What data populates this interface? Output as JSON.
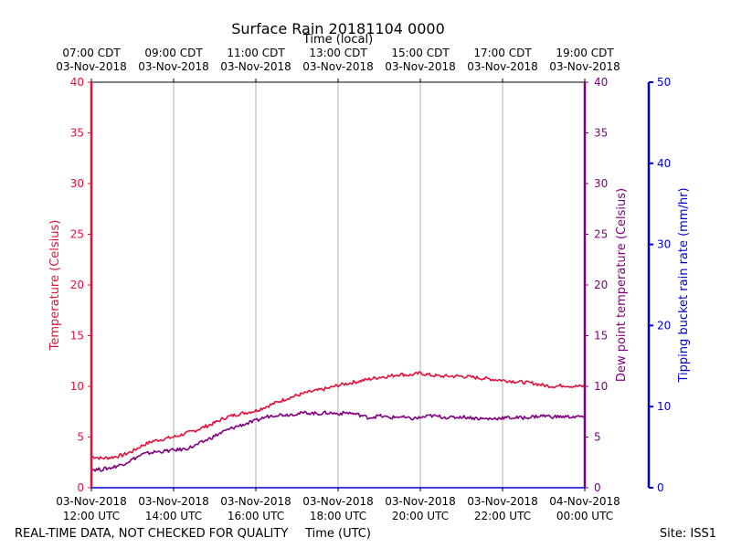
{
  "chart_data": {
    "type": "line",
    "title": "Surface Rain 20181104 0000",
    "top_axis_label": "Time (local)",
    "xlabel": "Time (UTC)",
    "ylabel_left": "Temperature (Celsius)",
    "ylabel_right": "Dew point temperature (Celsius)",
    "ylabel_far_right": "Tipping bucket rain rate (mm/hr)",
    "x_range_hours_utc": [
      12,
      24
    ],
    "ylim_temperature": [
      0,
      40
    ],
    "ylim_dewpoint": [
      0,
      40
    ],
    "ylim_rain_rate": [
      0,
      50
    ],
    "bottom_ticks": [
      {
        "x": 12,
        "line1": "03-Nov-2018",
        "line2": "12:00 UTC"
      },
      {
        "x": 14,
        "line1": "03-Nov-2018",
        "line2": "14:00 UTC"
      },
      {
        "x": 16,
        "line1": "03-Nov-2018",
        "line2": "16:00 UTC"
      },
      {
        "x": 18,
        "line1": "03-Nov-2018",
        "line2": "18:00 UTC"
      },
      {
        "x": 20,
        "line1": "03-Nov-2018",
        "line2": "20:00 UTC"
      },
      {
        "x": 22,
        "line1": "03-Nov-2018",
        "line2": "22:00 UTC"
      },
      {
        "x": 24,
        "line1": "04-Nov-2018",
        "line2": "00:00 UTC"
      }
    ],
    "top_ticks": [
      {
        "x": 12,
        "line1": "07:00 CDT",
        "line2": "03-Nov-2018"
      },
      {
        "x": 14,
        "line1": "09:00 CDT",
        "line2": "03-Nov-2018"
      },
      {
        "x": 16,
        "line1": "11:00 CDT",
        "line2": "03-Nov-2018"
      },
      {
        "x": 18,
        "line1": "13:00 CDT",
        "line2": "03-Nov-2018"
      },
      {
        "x": 20,
        "line1": "15:00 CDT",
        "line2": "03-Nov-2018"
      },
      {
        "x": 22,
        "line1": "17:00 CDT",
        "line2": "03-Nov-2018"
      },
      {
        "x": 24,
        "line1": "19:00 CDT",
        "line2": "03-Nov-2018"
      }
    ],
    "left_ticks": [
      "0",
      "5",
      "10",
      "15",
      "20",
      "25",
      "30",
      "35",
      "40"
    ],
    "right_ticks": [
      "0",
      "5",
      "10",
      "15",
      "20",
      "25",
      "30",
      "35",
      "40"
    ],
    "far_right_ticks": [
      "0",
      "10",
      "20",
      "30",
      "40",
      "50"
    ],
    "vertical_grid_x": [
      14,
      16,
      18,
      20,
      22
    ],
    "series": [
      {
        "name": "Temperature",
        "color": "#dc143c",
        "axis": "left",
        "x": [
          12.0,
          12.25,
          12.5,
          12.75,
          13.0,
          13.25,
          13.5,
          13.75,
          14.0,
          14.25,
          14.5,
          14.75,
          15.0,
          15.25,
          15.5,
          15.75,
          16.0,
          16.25,
          16.5,
          16.75,
          17.0,
          17.25,
          17.5,
          17.75,
          18.0,
          18.25,
          18.5,
          18.75,
          19.0,
          19.25,
          19.5,
          19.75,
          20.0,
          20.25,
          20.5,
          20.75,
          21.0,
          21.25,
          21.5,
          21.75,
          22.0,
          22.25,
          22.5,
          22.75,
          23.0,
          23.25,
          23.5,
          23.75,
          24.0
        ],
        "values": [
          3.1,
          2.9,
          3.0,
          3.2,
          3.6,
          4.2,
          4.6,
          4.8,
          5.0,
          5.3,
          5.6,
          6.0,
          6.4,
          6.9,
          7.2,
          7.4,
          7.6,
          8.0,
          8.4,
          8.8,
          9.1,
          9.4,
          9.6,
          9.8,
          10.1,
          10.3,
          10.5,
          10.7,
          10.9,
          11.0,
          11.2,
          11.1,
          11.3,
          11.1,
          11.0,
          11.0,
          11.0,
          10.9,
          10.8,
          10.7,
          10.6,
          10.5,
          10.4,
          10.3,
          10.1,
          10.0,
          10.1,
          10.0,
          10.0
        ]
      },
      {
        "name": "Dew point",
        "color": "#800080",
        "axis": "right",
        "x": [
          12.0,
          12.25,
          12.5,
          12.75,
          13.0,
          13.25,
          13.5,
          13.75,
          14.0,
          14.25,
          14.5,
          14.75,
          15.0,
          15.25,
          15.5,
          15.75,
          16.0,
          16.25,
          16.5,
          16.75,
          17.0,
          17.25,
          17.5,
          17.75,
          18.0,
          18.25,
          18.5,
          18.75,
          19.0,
          19.25,
          19.5,
          19.75,
          20.0,
          20.25,
          20.5,
          20.75,
          21.0,
          21.25,
          21.5,
          21.75,
          22.0,
          22.25,
          22.5,
          22.75,
          23.0,
          23.25,
          23.5,
          23.75,
          24.0
        ],
        "values": [
          1.8,
          1.8,
          2.0,
          2.3,
          2.8,
          3.3,
          3.5,
          3.6,
          3.7,
          3.8,
          4.1,
          4.6,
          5.1,
          5.6,
          6.0,
          6.3,
          6.6,
          7.0,
          7.2,
          7.2,
          7.3,
          7.4,
          7.3,
          7.4,
          7.3,
          7.4,
          7.2,
          6.9,
          7.1,
          6.9,
          7.0,
          6.8,
          6.9,
          7.1,
          7.0,
          6.9,
          7.0,
          6.9,
          6.8,
          6.8,
          6.9,
          6.9,
          6.9,
          7.0,
          7.1,
          7.0,
          7.0,
          7.0,
          7.0
        ]
      }
    ],
    "footer_left": "REAL-TIME DATA, NOT CHECKED FOR QUALITY",
    "footer_right": "Site: ISS1",
    "colors": {
      "temperature": "#dc143c",
      "dewpoint": "#800080",
      "rain": "#0000cd",
      "grid": "#b0b0b0"
    }
  }
}
